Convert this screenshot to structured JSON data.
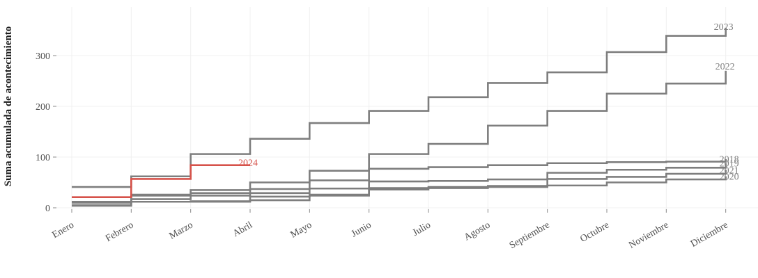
{
  "chart_data": {
    "type": "line",
    "subtype": "step",
    "title": "",
    "xlabel": "",
    "ylabel": "Suma acumulada de acontecimiento",
    "categories": [
      "Enero",
      "Febrero",
      "Marzo",
      "Abril",
      "Mayo",
      "Junio",
      "Julio",
      "Agosto",
      "Septiembre",
      "Octubre",
      "Noviembre",
      "Diciembre"
    ],
    "yticks": [
      0,
      100,
      200,
      300
    ],
    "ylim": [
      0,
      400
    ],
    "grid": true,
    "legend_position": "direct-labels-at-line-ends",
    "colors": {
      "line_gray": "#7e7e7e",
      "line_highlight": "#d6524a",
      "gridline": "#f0f0f0",
      "tick_mark": "#8a8a8a",
      "axis_text": "#4d4d4d",
      "axis_title_text": "#1a1a1a"
    },
    "series": [
      {
        "name": "2018",
        "color": "#7e7e7e",
        "values": [
          12,
          26,
          29,
          37,
          54,
          77,
          80,
          84,
          88,
          90,
          91,
          96
        ],
        "label_dx": 5,
        "label_dy": 4.4
      },
      {
        "name": "2019",
        "color": "#7e7e7e",
        "values": [
          10,
          17,
          24,
          29,
          38,
          52,
          53,
          56,
          69,
          75,
          79,
          88
        ],
        "label_dx": 5,
        "label_dy": 4.5
      },
      {
        "name": "2020",
        "color": "#7e7e7e",
        "values": [
          4,
          12,
          12,
          15,
          24,
          36,
          39,
          41,
          44,
          50,
          56,
          62
        ],
        "label_dx": 5,
        "label_dy": 4.6
      },
      {
        "name": "2021",
        "color": "#7e7e7e",
        "values": [
          5,
          12,
          13,
          22,
          26,
          39,
          41,
          43,
          57,
          61,
          67,
          75
        ],
        "label_dx": 5,
        "label_dy": 5
      },
      {
        "name": "2022",
        "color": "#7e7e7e",
        "values": [
          11,
          24,
          35,
          50,
          73,
          106,
          126,
          162,
          191,
          225,
          245,
          270
        ],
        "label_dx": -1,
        "label_dy": -2.1
      },
      {
        "name": "2023",
        "color": "#7e7e7e",
        "values": [
          41,
          62,
          106,
          136,
          167,
          191,
          218,
          246,
          267,
          307,
          339,
          355
        ],
        "label_dx": -3,
        "label_dy": 3
      },
      {
        "name": "2024",
        "color": "#d6524a",
        "values": [
          21,
          57,
          84,
          84
        ],
        "label_dx": -3,
        "label_dy": 0.6
      }
    ]
  }
}
